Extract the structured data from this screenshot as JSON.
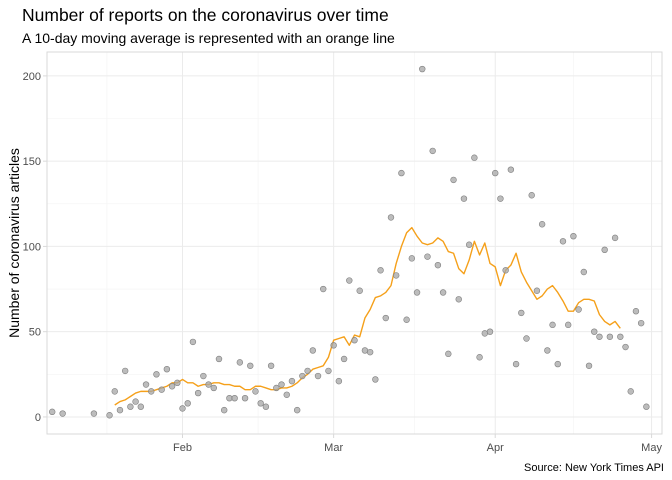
{
  "chart_data": {
    "type": "scatter",
    "title": "Number of reports on the coronavirus over time",
    "subtitle": "A 10-day moving average is represented with an orange line",
    "caption": "Source: New York Times API",
    "xlabel": "",
    "ylabel": "Number of coronavirus articles",
    "x_is_date": true,
    "xlim": [
      "2020-01-06",
      "2020-05-03"
    ],
    "ylim": [
      -10,
      214
    ],
    "x_ticks": [
      {
        "value": "2020-02-01",
        "label": "Feb"
      },
      {
        "value": "2020-03-01",
        "label": "Mar"
      },
      {
        "value": "2020-04-01",
        "label": "Apr"
      },
      {
        "value": "2020-05-01",
        "label": "May"
      }
    ],
    "y_ticks": [
      0,
      50,
      100,
      150,
      200
    ],
    "grid": true,
    "colors": {
      "points": "#a6a6a6",
      "moving_average": "#f5a01a",
      "panel_border": "#d9d9d9",
      "grid": "#ebebeb"
    },
    "series": [
      {
        "kind": "points",
        "points": [
          [
            "2020-01-07",
            3
          ],
          [
            "2020-01-09",
            2
          ],
          [
            "2020-01-15",
            2
          ],
          [
            "2020-01-18",
            1
          ],
          [
            "2020-01-19",
            15
          ],
          [
            "2020-01-20",
            4
          ],
          [
            "2020-01-21",
            27
          ],
          [
            "2020-01-22",
            6
          ],
          [
            "2020-01-23",
            9
          ],
          [
            "2020-01-24",
            6
          ],
          [
            "2020-01-25",
            19
          ],
          [
            "2020-01-26",
            15
          ],
          [
            "2020-01-27",
            25
          ],
          [
            "2020-01-28",
            16
          ],
          [
            "2020-01-29",
            28
          ],
          [
            "2020-01-30",
            18
          ],
          [
            "2020-01-31",
            20
          ],
          [
            "2020-02-01",
            5
          ],
          [
            "2020-02-02",
            8
          ],
          [
            "2020-02-03",
            44
          ],
          [
            "2020-02-04",
            14
          ],
          [
            "2020-02-05",
            24
          ],
          [
            "2020-02-06",
            19
          ],
          [
            "2020-02-07",
            17
          ],
          [
            "2020-02-08",
            34
          ],
          [
            "2020-02-09",
            4
          ],
          [
            "2020-02-10",
            11
          ],
          [
            "2020-02-11",
            11
          ],
          [
            "2020-02-12",
            32
          ],
          [
            "2020-02-13",
            11
          ],
          [
            "2020-02-14",
            30
          ],
          [
            "2020-02-15",
            15
          ],
          [
            "2020-02-16",
            8
          ],
          [
            "2020-02-17",
            6
          ],
          [
            "2020-02-18",
            30
          ],
          [
            "2020-02-19",
            17
          ],
          [
            "2020-02-20",
            19
          ],
          [
            "2020-02-21",
            13
          ],
          [
            "2020-02-22",
            21
          ],
          [
            "2020-02-23",
            4
          ],
          [
            "2020-02-24",
            24
          ],
          [
            "2020-02-25",
            27
          ],
          [
            "2020-02-26",
            39
          ],
          [
            "2020-02-27",
            24
          ],
          [
            "2020-02-28",
            75
          ],
          [
            "2020-02-29",
            27
          ],
          [
            "2020-03-01",
            42
          ],
          [
            "2020-03-02",
            21
          ],
          [
            "2020-03-03",
            34
          ],
          [
            "2020-03-04",
            80
          ],
          [
            "2020-03-05",
            45
          ],
          [
            "2020-03-06",
            74
          ],
          [
            "2020-03-07",
            39
          ],
          [
            "2020-03-08",
            38
          ],
          [
            "2020-03-09",
            22
          ],
          [
            "2020-03-10",
            86
          ],
          [
            "2020-03-11",
            58
          ],
          [
            "2020-03-12",
            117
          ],
          [
            "2020-03-13",
            83
          ],
          [
            "2020-03-14",
            143
          ],
          [
            "2020-03-15",
            57
          ],
          [
            "2020-03-16",
            93
          ],
          [
            "2020-03-17",
            73
          ],
          [
            "2020-03-18",
            204
          ],
          [
            "2020-03-19",
            94
          ],
          [
            "2020-03-20",
            156
          ],
          [
            "2020-03-21",
            89
          ],
          [
            "2020-03-22",
            73
          ],
          [
            "2020-03-23",
            37
          ],
          [
            "2020-03-24",
            139
          ],
          [
            "2020-03-25",
            69
          ],
          [
            "2020-03-26",
            128
          ],
          [
            "2020-03-27",
            101
          ],
          [
            "2020-03-28",
            152
          ],
          [
            "2020-03-29",
            35
          ],
          [
            "2020-03-30",
            49
          ],
          [
            "2020-03-31",
            50
          ],
          [
            "2020-04-01",
            143
          ],
          [
            "2020-04-02",
            128
          ],
          [
            "2020-04-03",
            86
          ],
          [
            "2020-04-04",
            145
          ],
          [
            "2020-04-05",
            31
          ],
          [
            "2020-04-06",
            61
          ],
          [
            "2020-04-07",
            46
          ],
          [
            "2020-04-08",
            130
          ],
          [
            "2020-04-09",
            74
          ],
          [
            "2020-04-10",
            113
          ],
          [
            "2020-04-11",
            39
          ],
          [
            "2020-04-12",
            54
          ],
          [
            "2020-04-13",
            31
          ],
          [
            "2020-04-14",
            103
          ],
          [
            "2020-04-15",
            54
          ],
          [
            "2020-04-16",
            106
          ],
          [
            "2020-04-17",
            63
          ],
          [
            "2020-04-18",
            85
          ],
          [
            "2020-04-19",
            30
          ],
          [
            "2020-04-20",
            50
          ],
          [
            "2020-04-21",
            47
          ],
          [
            "2020-04-22",
            98
          ],
          [
            "2020-04-23",
            47
          ],
          [
            "2020-04-24",
            105
          ],
          [
            "2020-04-25",
            47
          ],
          [
            "2020-04-26",
            41
          ],
          [
            "2020-04-27",
            15
          ],
          [
            "2020-04-28",
            62
          ],
          [
            "2020-04-29",
            55
          ],
          [
            "2020-04-30",
            6
          ]
        ]
      },
      {
        "kind": "line",
        "description_text": "A 10-day moving average is represented with an orange line",
        "points": [
          [
            "2020-01-19",
            7
          ],
          [
            "2020-01-20",
            9
          ],
          [
            "2020-01-21",
            10
          ],
          [
            "2020-01-22",
            12
          ],
          [
            "2020-01-23",
            14
          ],
          [
            "2020-01-24",
            15
          ],
          [
            "2020-01-25",
            15
          ],
          [
            "2020-01-26",
            15
          ],
          [
            "2020-01-27",
            16
          ],
          [
            "2020-01-28",
            17
          ],
          [
            "2020-01-29",
            18
          ],
          [
            "2020-01-30",
            20
          ],
          [
            "2020-01-31",
            20
          ],
          [
            "2020-02-01",
            22
          ],
          [
            "2020-02-02",
            20
          ],
          [
            "2020-02-03",
            20
          ],
          [
            "2020-02-04",
            18
          ],
          [
            "2020-02-05",
            19
          ],
          [
            "2020-02-06",
            19
          ],
          [
            "2020-02-07",
            20
          ],
          [
            "2020-02-08",
            20
          ],
          [
            "2020-02-09",
            19
          ],
          [
            "2020-02-10",
            19
          ],
          [
            "2020-02-11",
            18
          ],
          [
            "2020-02-12",
            18
          ],
          [
            "2020-02-13",
            16
          ],
          [
            "2020-02-14",
            16
          ],
          [
            "2020-02-15",
            18
          ],
          [
            "2020-02-16",
            18
          ],
          [
            "2020-02-17",
            17
          ],
          [
            "2020-02-18",
            16
          ],
          [
            "2020-02-19",
            16
          ],
          [
            "2020-02-20",
            17
          ],
          [
            "2020-02-21",
            17
          ],
          [
            "2020-02-22",
            18
          ],
          [
            "2020-02-23",
            20
          ],
          [
            "2020-02-24",
            23
          ],
          [
            "2020-02-25",
            25
          ],
          [
            "2020-02-26",
            28
          ],
          [
            "2020-02-27",
            29
          ],
          [
            "2020-02-28",
            30
          ],
          [
            "2020-02-29",
            35
          ],
          [
            "2020-03-01",
            45
          ],
          [
            "2020-03-02",
            46
          ],
          [
            "2020-03-03",
            47
          ],
          [
            "2020-03-04",
            42
          ],
          [
            "2020-03-05",
            48
          ],
          [
            "2020-03-06",
            47
          ],
          [
            "2020-03-07",
            58
          ],
          [
            "2020-03-08",
            63
          ],
          [
            "2020-03-09",
            70
          ],
          [
            "2020-03-10",
            71
          ],
          [
            "2020-03-11",
            73
          ],
          [
            "2020-03-12",
            77
          ],
          [
            "2020-03-13",
            90
          ],
          [
            "2020-03-14",
            100
          ],
          [
            "2020-03-15",
            108
          ],
          [
            "2020-03-16",
            111
          ],
          [
            "2020-03-17",
            106
          ],
          [
            "2020-03-18",
            102
          ],
          [
            "2020-03-19",
            101
          ],
          [
            "2020-03-20",
            102
          ],
          [
            "2020-03-21",
            105
          ],
          [
            "2020-03-22",
            103
          ],
          [
            "2020-03-23",
            97
          ],
          [
            "2020-03-24",
            96
          ],
          [
            "2020-03-25",
            87
          ],
          [
            "2020-03-26",
            84
          ],
          [
            "2020-03-27",
            92
          ],
          [
            "2020-03-28",
            103
          ],
          [
            "2020-03-29",
            95
          ],
          [
            "2020-03-30",
            102
          ],
          [
            "2020-03-31",
            90
          ],
          [
            "2020-04-01",
            88
          ],
          [
            "2020-04-02",
            77
          ],
          [
            "2020-04-03",
            86
          ],
          [
            "2020-04-04",
            89
          ],
          [
            "2020-04-05",
            96
          ],
          [
            "2020-04-06",
            85
          ],
          [
            "2020-04-07",
            79
          ],
          [
            "2020-04-08",
            74
          ],
          [
            "2020-04-09",
            69
          ],
          [
            "2020-04-10",
            71
          ],
          [
            "2020-04-11",
            75
          ],
          [
            "2020-04-12",
            77
          ],
          [
            "2020-04-13",
            73
          ],
          [
            "2020-04-14",
            68
          ],
          [
            "2020-04-15",
            62
          ],
          [
            "2020-04-16",
            62
          ],
          [
            "2020-04-17",
            67
          ],
          [
            "2020-04-18",
            69
          ],
          [
            "2020-04-19",
            69
          ],
          [
            "2020-04-20",
            68
          ],
          [
            "2020-04-21",
            60
          ],
          [
            "2020-04-22",
            56
          ],
          [
            "2020-04-23",
            54
          ],
          [
            "2020-04-24",
            56
          ],
          [
            "2020-04-25",
            52
          ]
        ]
      }
    ]
  }
}
